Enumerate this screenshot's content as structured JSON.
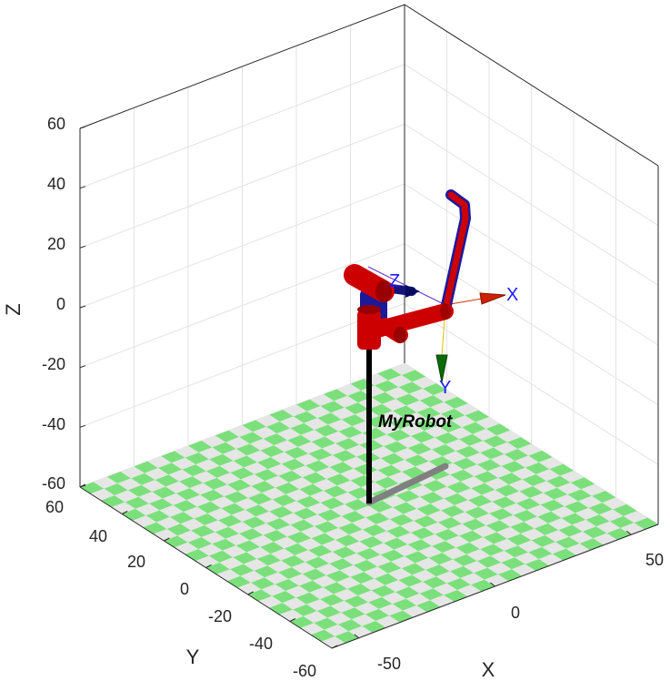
{
  "chart_data": {
    "type": "3d-scene",
    "title": "",
    "xlabel": "X",
    "ylabel": "Y",
    "zlabel": "Z",
    "xlim": [
      -60,
      60
    ],
    "ylim": [
      -60,
      60
    ],
    "zlim": [
      -60,
      60
    ],
    "x_ticks": [
      "-50",
      "0",
      "50"
    ],
    "y_ticks": [
      "-60",
      "-40",
      "-20",
      "0",
      "20",
      "40",
      "60"
    ],
    "z_ticks": [
      "-60",
      "-40",
      "-20",
      "0",
      "20",
      "40",
      "60"
    ],
    "grid": true,
    "floor": {
      "pattern": "checkerboard",
      "colors": [
        "#7be07b",
        "#e6e6e6"
      ]
    },
    "robot": {
      "name": "MyRobot",
      "link_color": "#cc0000",
      "joint_color": "#990000",
      "pedestal_color": "#000000",
      "shadow_color": "#808080"
    },
    "frame_labels": {
      "x": "X",
      "y": "Y",
      "z": "Z"
    }
  }
}
